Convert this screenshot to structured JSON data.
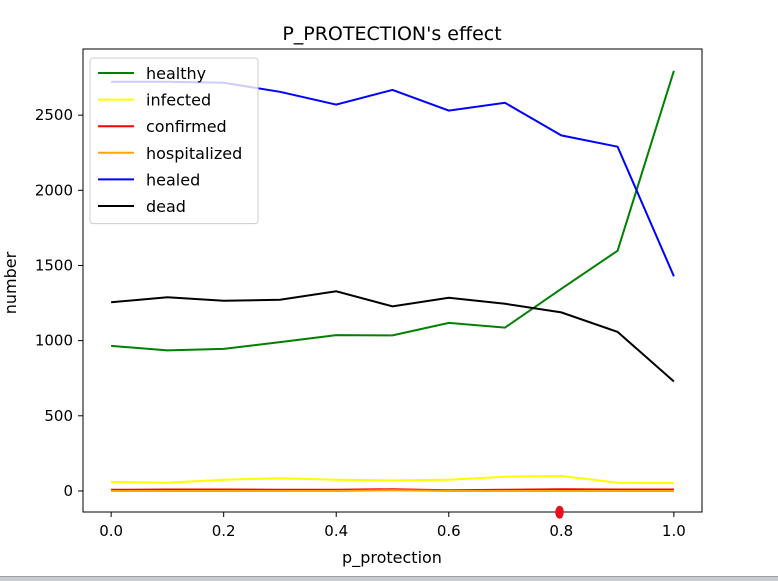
{
  "chart_data": {
    "type": "line",
    "title": "P_PROTECTION's effect",
    "xlabel": "p_protection",
    "ylabel": "number",
    "x": [
      0.0,
      0.1,
      0.2,
      0.3,
      0.4,
      0.5,
      0.6,
      0.7,
      0.8,
      0.9,
      1.0
    ],
    "xlim": [
      -0.05,
      1.05
    ],
    "ylim": [
      -140,
      2940
    ],
    "xticks": [
      0.0,
      0.2,
      0.4,
      0.6,
      0.8,
      1.0
    ],
    "xtick_labels": [
      "0.0",
      "0.2",
      "0.4",
      "0.6",
      "0.8",
      "1.0"
    ],
    "yticks": [
      0,
      500,
      1000,
      1500,
      2000,
      2500
    ],
    "ytick_labels": [
      "0",
      "500",
      "1000",
      "1500",
      "2000",
      "2500"
    ],
    "grid": false,
    "legend_position": "top-left",
    "series": [
      {
        "name": "healthy",
        "color": "#008000",
        "values": [
          965,
          935,
          945,
          990,
          1037,
          1035,
          1118,
          1087,
          1345,
          1598,
          2795
        ]
      },
      {
        "name": "infected",
        "color": "#ffff00",
        "values": [
          60,
          55,
          75,
          85,
          75,
          70,
          75,
          95,
          100,
          55,
          52
        ]
      },
      {
        "name": "confirmed",
        "color": "#ff0000",
        "values": [
          8,
          10,
          10,
          8,
          8,
          12,
          5,
          8,
          12,
          10,
          10
        ]
      },
      {
        "name": "hospitalized",
        "color": "#ffa500",
        "values": [
          0,
          0,
          0,
          0,
          0,
          5,
          0,
          0,
          0,
          0,
          0
        ]
      },
      {
        "name": "healed",
        "color": "#0000ff",
        "values": [
          2722,
          2722,
          2715,
          2655,
          2570,
          2668,
          2530,
          2582,
          2365,
          2290,
          1428
        ]
      },
      {
        "name": "dead",
        "color": "#000000",
        "values": [
          1255,
          1288,
          1265,
          1272,
          1328,
          1228,
          1285,
          1245,
          1188,
          1058,
          728
        ]
      }
    ]
  }
}
